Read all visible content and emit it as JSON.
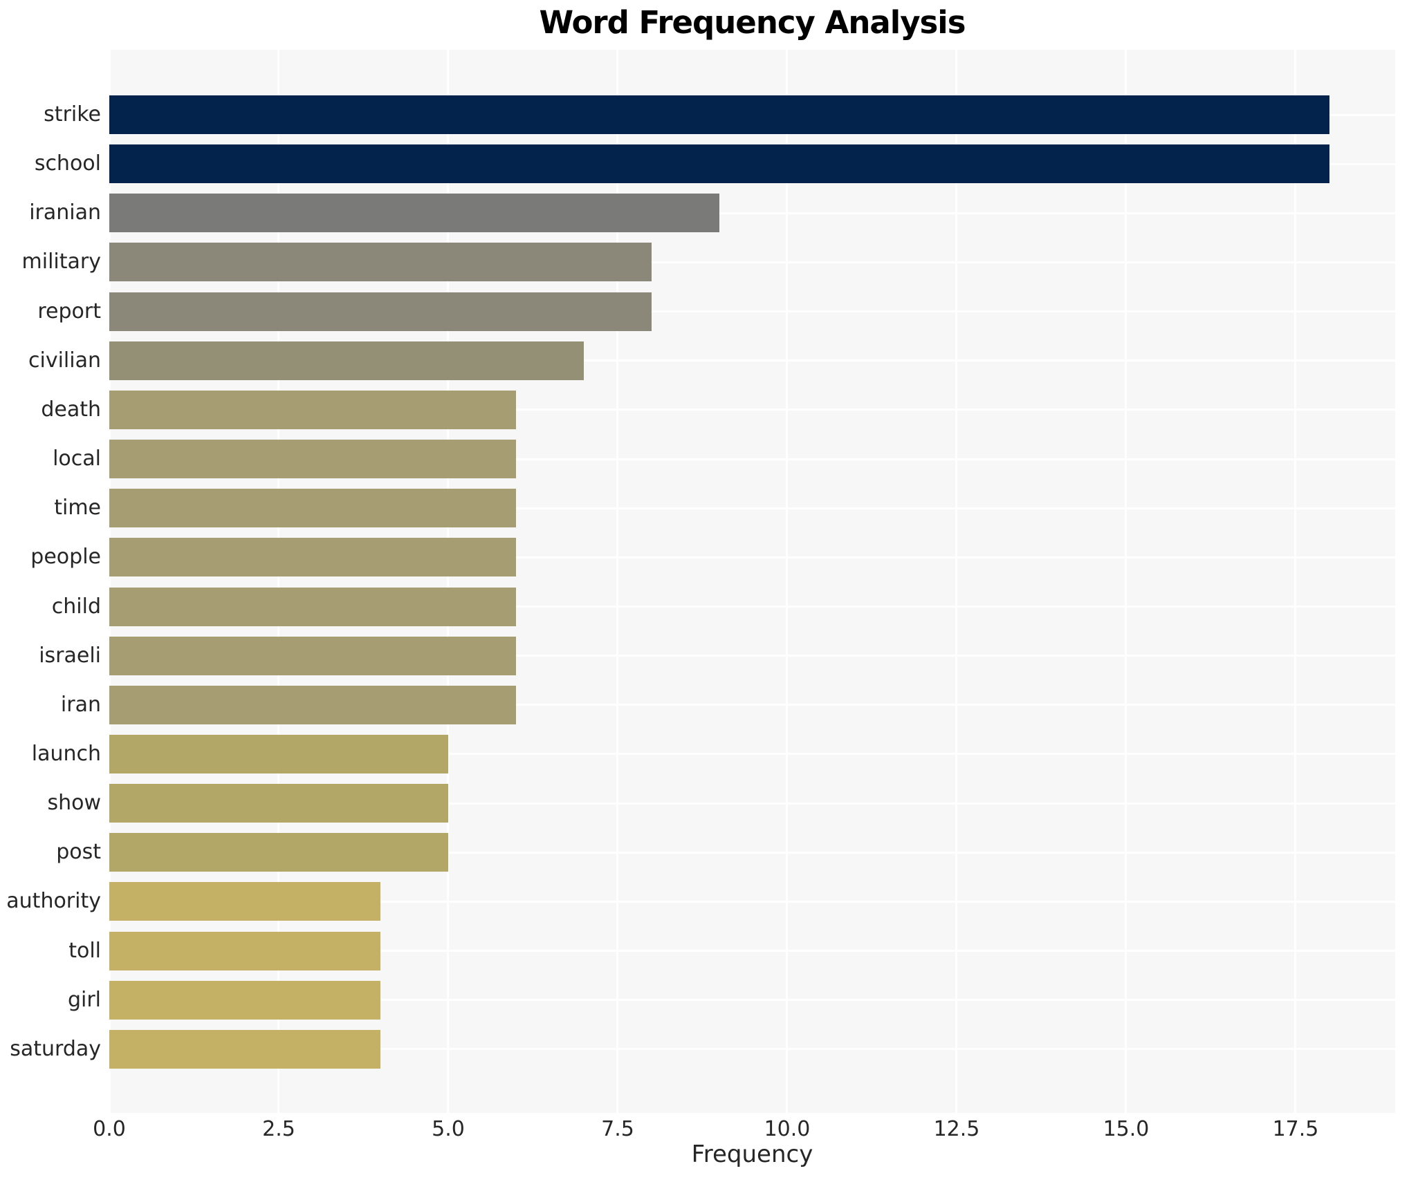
{
  "title": "Word Frequency Analysis",
  "chart_data": {
    "type": "bar",
    "orientation": "horizontal",
    "title": "Word Frequency Analysis",
    "xlabel": "Frequency",
    "ylabel": "",
    "categories": [
      "strike",
      "school",
      "iranian",
      "military",
      "report",
      "civilian",
      "death",
      "local",
      "time",
      "people",
      "child",
      "israeli",
      "iran",
      "launch",
      "show",
      "post",
      "authority",
      "toll",
      "girl",
      "saturday"
    ],
    "values": [
      18,
      18,
      9,
      8,
      8,
      7,
      6,
      6,
      6,
      6,
      6,
      6,
      6,
      5,
      5,
      5,
      4,
      4,
      4,
      4
    ],
    "bar_colors": [
      "#03234d",
      "#03234d",
      "#7a7a78",
      "#8b887a",
      "#8b887a",
      "#949076",
      "#a69d73",
      "#a69d73",
      "#a69d73",
      "#a69d73",
      "#a69d73",
      "#a69d73",
      "#a69d73",
      "#b3a768",
      "#b3a768",
      "#b3a768",
      "#c4b166",
      "#c4b166",
      "#c4b166",
      "#c4b166"
    ],
    "xlim": [
      0,
      18.97
    ],
    "xticks": [
      0.0,
      2.5,
      5.0,
      7.5,
      10.0,
      12.5,
      15.0,
      17.5
    ],
    "xtick_labels": [
      "0.0",
      "2.5",
      "5.0",
      "7.5",
      "10.0",
      "12.5",
      "15.0",
      "17.5"
    ],
    "grid": true,
    "legend": false,
    "colors": {
      "plot_background": "#f7f7f7",
      "figure_background": "#ffffff",
      "gridline": "#ffffff",
      "tick_text": "#262626",
      "title_text": "#000000"
    }
  }
}
